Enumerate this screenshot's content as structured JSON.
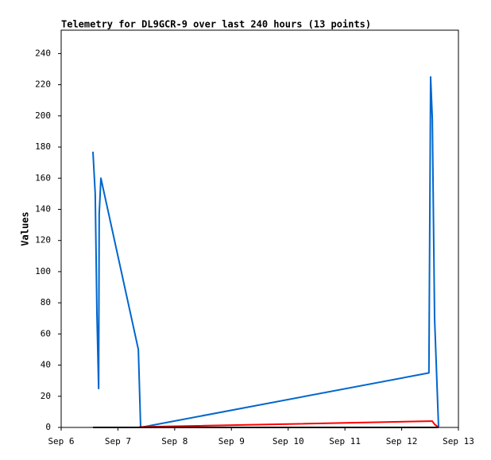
{
  "chart_data": {
    "type": "line",
    "title": "Telemetry for DL9GCR-9 over last 240 hours (13 points)",
    "ylabel": "Values",
    "x": [
      6.56,
      6.6,
      6.63,
      6.66,
      6.67,
      6.7,
      7.36,
      7.4,
      12.48,
      12.51,
      12.54,
      12.58,
      12.65
    ],
    "series": [
      {
        "color": "#0066cc",
        "values": [
          177,
          150,
          73,
          25,
          137,
          160,
          50,
          0,
          35,
          225,
          198,
          70,
          0
        ]
      },
      {
        "color": "#ff0000",
        "values": [
          0,
          0,
          0,
          0,
          0,
          0,
          0,
          0.3,
          4,
          4,
          4,
          2,
          0
        ]
      },
      {
        "color": "#000000",
        "values": [
          0,
          0,
          0,
          0,
          0,
          0,
          0,
          0,
          0,
          0,
          0,
          0,
          0
        ]
      }
    ],
    "xlim": [
      6,
      13
    ],
    "xticks": [
      {
        "value": 6,
        "label": "Sep 6"
      },
      {
        "value": 7,
        "label": "Sep 7"
      },
      {
        "value": 8,
        "label": "Sep 8"
      },
      {
        "value": 9,
        "label": "Sep 9"
      },
      {
        "value": 10,
        "label": "Sep 10"
      },
      {
        "value": 11,
        "label": "Sep 11"
      },
      {
        "value": 12,
        "label": "Sep 12"
      },
      {
        "value": 13,
        "label": "Sep 13"
      }
    ],
    "ylim": [
      0,
      255
    ],
    "yticks": [
      0,
      20,
      40,
      60,
      80,
      100,
      120,
      140,
      160,
      180,
      200,
      220,
      240
    ],
    "grid": false
  }
}
